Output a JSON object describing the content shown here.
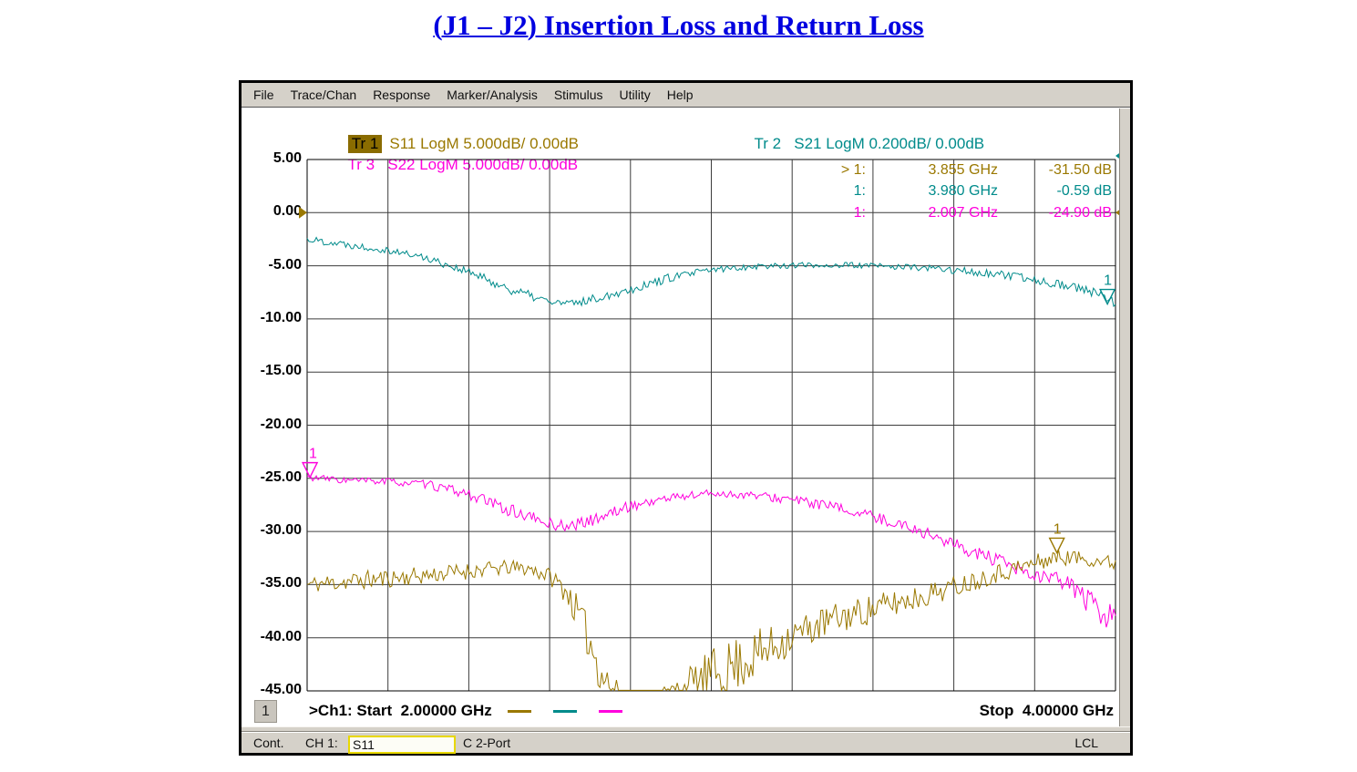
{
  "page_title": "(J1 – J2) Insertion Loss and Return Loss",
  "window": {
    "menu": [
      "File",
      "Trace/Chan",
      "Response",
      "Marker/Analysis",
      "Stimulus",
      "Utility",
      "Help"
    ],
    "channel_badge": "1",
    "stimulus": {
      "start": ">Ch1: Start  2.00000 GHz",
      "stop": "Stop  4.00000 GHz"
    },
    "status": {
      "sweep": "Cont.",
      "channel": "CH 1:",
      "measurement": "S11",
      "calibration": "C 2-Port",
      "mode": "LCL"
    }
  },
  "traces": [
    {
      "id": "Tr 1",
      "params": "S11 LogM 5.000dB/ 0.00dB",
      "color": "#9a7800",
      "active": true
    },
    {
      "id": "Tr 2",
      "params": "S21 LogM 0.200dB/ 0.00dB",
      "color": "#008b8b",
      "active": false
    },
    {
      "id": "Tr 3",
      "params": "S22 LogM 5.000dB/ 0.00dB",
      "color": "#ff00dd",
      "active": false
    }
  ],
  "chart_data": {
    "type": "line",
    "title": "(J1 – J2) Insertion Loss and Return Loss",
    "x_axis": {
      "start_ghz": 2.0,
      "stop_ghz": 4.0,
      "divisions": 10,
      "start_label": ">Ch1: Start  2.00000 GHz",
      "stop_label": "Stop  4.00000 GHz"
    },
    "y_axis": {
      "unit": "dB",
      "per_div_db": 5,
      "top_db": 5,
      "bottom_db": -45,
      "tick_labels": [
        "5.00",
        "0.00",
        "-5.00",
        "-10.00",
        "-15.00",
        "-20.00",
        "-25.00",
        "-30.00",
        "-35.00",
        "-40.00",
        "-45.00"
      ]
    },
    "grid": true,
    "legend_position": "top-left",
    "markers": [
      {
        "trace": "Tr 1",
        "label": "> 1:",
        "freq_text": "3.855 GHz",
        "value_text": "-31.50 dB",
        "freq_ghz": 3.855,
        "value_db": -31.5,
        "drawn_db": -32.0,
        "color": "#9a7800"
      },
      {
        "trace": "Tr 2",
        "label": "1:",
        "freq_text": "3.980 GHz",
        "value_text": "-0.59 dB",
        "freq_ghz": 3.98,
        "value_db": -0.59,
        "drawn_db": -8.6,
        "color": "#008b8b"
      },
      {
        "trace": "Tr 3",
        "label": "1:",
        "freq_text": "2.007 GHz",
        "value_text": "-24.90 dB",
        "freq_ghz": 2.007,
        "value_db": -24.9,
        "drawn_db": -24.9,
        "color": "#ff00dd"
      }
    ],
    "series": [
      {
        "name": "Tr 1 S11 (return loss)",
        "color": "#9a7800",
        "points": [
          [
            2.0,
            -35.0,
            0.8
          ],
          [
            2.1,
            -34.7,
            0.9
          ],
          [
            2.2,
            -34.4,
            0.9
          ],
          [
            2.3,
            -34.1,
            0.8
          ],
          [
            2.4,
            -33.7,
            0.8
          ],
          [
            2.5,
            -33.4,
            0.7
          ],
          [
            2.55,
            -33.5,
            0.7
          ],
          [
            2.6,
            -34.2,
            0.8
          ],
          [
            2.64,
            -35.5,
            1.2
          ],
          [
            2.68,
            -38.5,
            1.8
          ],
          [
            2.72,
            -42.5,
            2.2
          ],
          [
            2.76,
            -45.3,
            1.5
          ],
          [
            2.82,
            -45.5,
            0.5
          ],
          [
            2.88,
            -45.5,
            1.0
          ],
          [
            2.94,
            -44.8,
            2.0
          ],
          [
            3.0,
            -43.5,
            2.4
          ],
          [
            3.06,
            -42.5,
            2.6
          ],
          [
            3.12,
            -41.5,
            2.4
          ],
          [
            3.2,
            -39.8,
            1.7
          ],
          [
            3.3,
            -38.3,
            1.5
          ],
          [
            3.4,
            -37.3,
            1.4
          ],
          [
            3.5,
            -36.3,
            1.2
          ],
          [
            3.6,
            -35.2,
            1.0
          ],
          [
            3.7,
            -34.0,
            0.9
          ],
          [
            3.78,
            -33.2,
            0.9
          ],
          [
            3.855,
            -32.4,
            0.8
          ],
          [
            3.92,
            -32.5,
            0.7
          ],
          [
            4.0,
            -33.0,
            0.7
          ]
        ]
      },
      {
        "name": "Tr 2 S21 (insertion loss)",
        "color": "#008b8b",
        "points": [
          [
            2.0,
            -2.5,
            0.35
          ],
          [
            2.1,
            -3.0,
            0.35
          ],
          [
            2.2,
            -3.5,
            0.35
          ],
          [
            2.3,
            -4.3,
            0.35
          ],
          [
            2.4,
            -5.6,
            0.4
          ],
          [
            2.5,
            -7.2,
            0.45
          ],
          [
            2.6,
            -8.4,
            0.45
          ],
          [
            2.65,
            -8.6,
            0.4
          ],
          [
            2.7,
            -8.2,
            0.4
          ],
          [
            2.8,
            -7.2,
            0.45
          ],
          [
            2.9,
            -6.1,
            0.4
          ],
          [
            3.0,
            -5.4,
            0.35
          ],
          [
            3.1,
            -5.05,
            0.3
          ],
          [
            3.2,
            -4.95,
            0.3
          ],
          [
            3.35,
            -4.95,
            0.3
          ],
          [
            3.5,
            -5.15,
            0.3
          ],
          [
            3.6,
            -5.4,
            0.35
          ],
          [
            3.7,
            -5.8,
            0.4
          ],
          [
            3.8,
            -6.3,
            0.4
          ],
          [
            3.9,
            -7.0,
            0.45
          ],
          [
            3.95,
            -7.6,
            0.5
          ],
          [
            4.0,
            -8.6,
            0.55
          ]
        ]
      },
      {
        "name": "Tr 3 S22 (return loss)",
        "color": "#ff00dd",
        "points": [
          [
            2.0,
            -24.9,
            0.3
          ],
          [
            2.1,
            -25.2,
            0.35
          ],
          [
            2.2,
            -25.3,
            0.35
          ],
          [
            2.3,
            -25.6,
            0.4
          ],
          [
            2.4,
            -26.5,
            0.5
          ],
          [
            2.5,
            -28.0,
            0.6
          ],
          [
            2.6,
            -29.3,
            0.6
          ],
          [
            2.65,
            -29.5,
            0.55
          ],
          [
            2.7,
            -29.0,
            0.55
          ],
          [
            2.8,
            -27.6,
            0.5
          ],
          [
            2.9,
            -26.8,
            0.45
          ],
          [
            3.0,
            -26.4,
            0.4
          ],
          [
            3.1,
            -26.6,
            0.4
          ],
          [
            3.2,
            -27.0,
            0.45
          ],
          [
            3.3,
            -27.7,
            0.5
          ],
          [
            3.4,
            -28.6,
            0.5
          ],
          [
            3.5,
            -29.7,
            0.55
          ],
          [
            3.6,
            -31.2,
            0.6
          ],
          [
            3.7,
            -32.7,
            0.7
          ],
          [
            3.78,
            -34.0,
            0.8
          ],
          [
            3.85,
            -34.6,
            0.9
          ],
          [
            3.9,
            -35.3,
            1.0
          ],
          [
            3.95,
            -37.3,
            1.3
          ],
          [
            3.98,
            -38.3,
            1.3
          ],
          [
            4.0,
            -37.0,
            1.0
          ]
        ]
      }
    ]
  }
}
